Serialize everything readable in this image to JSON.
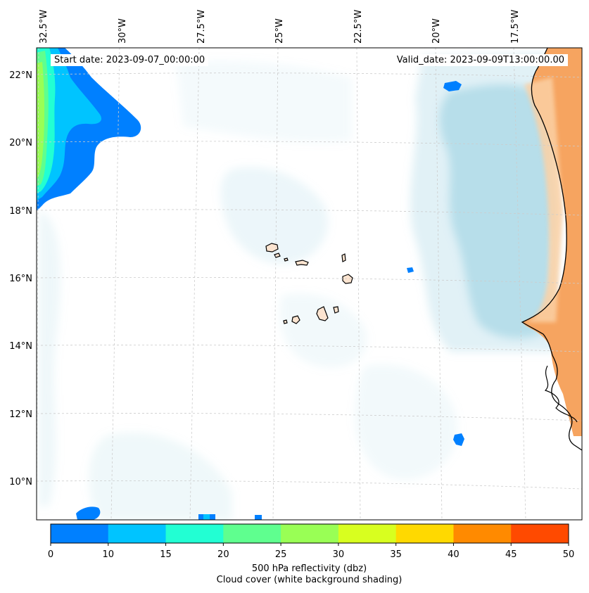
{
  "annotations": {
    "start_date": "Start date: 2023-09-07_00:00:00",
    "valid_date": "Valid_date: 2023-09-09T13:00:00.00"
  },
  "longitude_labels": [
    "32.5°W",
    "30°W",
    "27.5°W",
    "25°W",
    "22.5°W",
    "20°W",
    "17.5°W"
  ],
  "latitude_labels": [
    "22°N",
    "20°N",
    "18°N",
    "16°N",
    "14°N",
    "12°N",
    "10°N"
  ],
  "colorbar": {
    "ticks": [
      "0",
      "10",
      "15",
      "20",
      "25",
      "30",
      "35",
      "40",
      "45",
      "50"
    ],
    "colors": [
      "#0080ff",
      "#00c4ff",
      "#22ffd3",
      "#5fff8f",
      "#99ff55",
      "#d8ff1f",
      "#ffd900",
      "#ff8a00",
      "#ff4a00"
    ],
    "title_line1": "500 hPa reflectivity (dbz)",
    "title_line2": "Cloud cover (white background shading)"
  },
  "colors": {
    "land": "#f6a460",
    "land_light": "#fbd0a4",
    "cloud_shade": "#a8d8e6",
    "coastline": "#000000",
    "gridline": "#cccccc"
  }
}
